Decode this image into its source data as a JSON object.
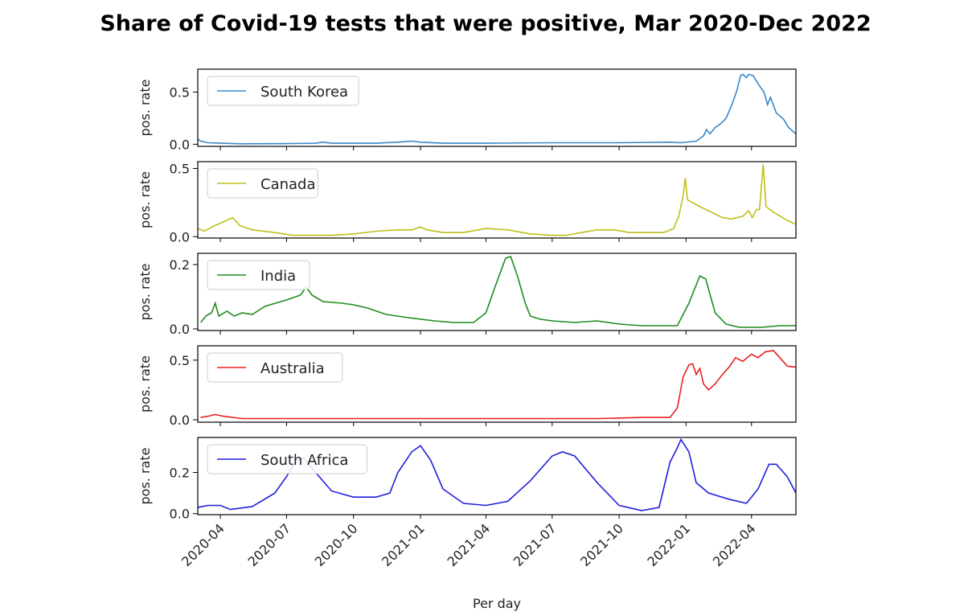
{
  "chart_data": {
    "type": "line",
    "title": "Share of Covid-19 tests that were positive, Mar 2020-Dec 2022",
    "xlabel": "Per day",
    "xlim": [
      "2020-03-01",
      "2022-06-01"
    ],
    "x_ticks": [
      "2020-04",
      "2020-07",
      "2020-10",
      "2021-01",
      "2021-04",
      "2021-07",
      "2021-10",
      "2022-01",
      "2022-04"
    ],
    "legend_position": "upper left",
    "panels": [
      {
        "name": "South Korea",
        "color": "#3a87c8",
        "ylabel": "pos. rate",
        "ylim": [
          -0.02,
          0.72
        ],
        "yticks": [
          0.0,
          0.5
        ],
        "series": [
          [
            "2020-03-01",
            0.05
          ],
          [
            "2020-03-05",
            0.03
          ],
          [
            "2020-03-15",
            0.015
          ],
          [
            "2020-04-01",
            0.01
          ],
          [
            "2020-05-01",
            0.005
          ],
          [
            "2020-07-01",
            0.006
          ],
          [
            "2020-08-10",
            0.01
          ],
          [
            "2020-08-20",
            0.02
          ],
          [
            "2020-09-01",
            0.01
          ],
          [
            "2020-11-01",
            0.01
          ],
          [
            "2020-12-01",
            0.02
          ],
          [
            "2020-12-20",
            0.03
          ],
          [
            "2021-01-01",
            0.02
          ],
          [
            "2021-02-01",
            0.01
          ],
          [
            "2021-04-01",
            0.01
          ],
          [
            "2021-07-01",
            0.015
          ],
          [
            "2021-10-01",
            0.015
          ],
          [
            "2021-12-10",
            0.02
          ],
          [
            "2021-12-25",
            0.015
          ],
          [
            "2022-01-15",
            0.03
          ],
          [
            "2022-01-25",
            0.08
          ],
          [
            "2022-01-29",
            0.14
          ],
          [
            "2022-02-03",
            0.1
          ],
          [
            "2022-02-10",
            0.16
          ],
          [
            "2022-02-18",
            0.2
          ],
          [
            "2022-02-25",
            0.25
          ],
          [
            "2022-03-05",
            0.38
          ],
          [
            "2022-03-12",
            0.52
          ],
          [
            "2022-03-17",
            0.66
          ],
          [
            "2022-03-20",
            0.67
          ],
          [
            "2022-03-25",
            0.64
          ],
          [
            "2022-03-28",
            0.67
          ],
          [
            "2022-04-03",
            0.66
          ],
          [
            "2022-04-10",
            0.58
          ],
          [
            "2022-04-18",
            0.5
          ],
          [
            "2022-04-23",
            0.38
          ],
          [
            "2022-04-27",
            0.45
          ],
          [
            "2022-05-05",
            0.3
          ],
          [
            "2022-05-15",
            0.24
          ],
          [
            "2022-05-22",
            0.16
          ],
          [
            "2022-06-01",
            0.1
          ]
        ]
      },
      {
        "name": "Canada",
        "color": "#bfbf1a",
        "ylabel": "pos. rate",
        "ylim": [
          -0.01,
          0.55
        ],
        "yticks": [
          0.0,
          0.5
        ],
        "series": [
          [
            "2020-03-01",
            0.06
          ],
          [
            "2020-03-10",
            0.04
          ],
          [
            "2020-03-20",
            0.07
          ],
          [
            "2020-04-10",
            0.12
          ],
          [
            "2020-04-18",
            0.14
          ],
          [
            "2020-04-28",
            0.08
          ],
          [
            "2020-05-15",
            0.05
          ],
          [
            "2020-06-15",
            0.03
          ],
          [
            "2020-07-10",
            0.01
          ],
          [
            "2020-09-01",
            0.01
          ],
          [
            "2020-10-01",
            0.02
          ],
          [
            "2020-11-01",
            0.04
          ],
          [
            "2020-12-01",
            0.05
          ],
          [
            "2020-12-20",
            0.05
          ],
          [
            "2021-01-01",
            0.07
          ],
          [
            "2021-01-10",
            0.05
          ],
          [
            "2021-02-01",
            0.03
          ],
          [
            "2021-03-01",
            0.03
          ],
          [
            "2021-04-01",
            0.06
          ],
          [
            "2021-05-01",
            0.05
          ],
          [
            "2021-06-01",
            0.02
          ],
          [
            "2021-07-01",
            0.01
          ],
          [
            "2021-07-20",
            0.01
          ],
          [
            "2021-08-10",
            0.03
          ],
          [
            "2021-09-01",
            0.05
          ],
          [
            "2021-09-25",
            0.05
          ],
          [
            "2021-10-15",
            0.03
          ],
          [
            "2021-12-01",
            0.03
          ],
          [
            "2021-12-15",
            0.06
          ],
          [
            "2021-12-22",
            0.15
          ],
          [
            "2021-12-28",
            0.3
          ],
          [
            "2021-12-31",
            0.43
          ],
          [
            "2022-01-03",
            0.27
          ],
          [
            "2022-01-10",
            0.25
          ],
          [
            "2022-01-20",
            0.22
          ],
          [
            "2022-02-05",
            0.18
          ],
          [
            "2022-02-20",
            0.14
          ],
          [
            "2022-03-05",
            0.13
          ],
          [
            "2022-03-20",
            0.15
          ],
          [
            "2022-03-28",
            0.19
          ],
          [
            "2022-04-02",
            0.14
          ],
          [
            "2022-04-08",
            0.2
          ],
          [
            "2022-04-12",
            0.2
          ],
          [
            "2022-04-17",
            0.53
          ],
          [
            "2022-04-21",
            0.22
          ],
          [
            "2022-05-01",
            0.18
          ],
          [
            "2022-05-20",
            0.12
          ],
          [
            "2022-06-01",
            0.09
          ]
        ]
      },
      {
        "name": "India",
        "color": "#1e8c1e",
        "ylabel": "pos. rate",
        "ylim": [
          -0.005,
          0.235
        ],
        "yticks": [
          0.0,
          0.2
        ],
        "series": [
          [
            "2020-03-05",
            0.02
          ],
          [
            "2020-03-12",
            0.04
          ],
          [
            "2020-03-20",
            0.05
          ],
          [
            "2020-03-25",
            0.08
          ],
          [
            "2020-03-30",
            0.04
          ],
          [
            "2020-04-10",
            0.055
          ],
          [
            "2020-04-20",
            0.04
          ],
          [
            "2020-05-01",
            0.05
          ],
          [
            "2020-05-15",
            0.045
          ],
          [
            "2020-06-01",
            0.07
          ],
          [
            "2020-07-01",
            0.09
          ],
          [
            "2020-07-20",
            0.105
          ],
          [
            "2020-07-28",
            0.13
          ],
          [
            "2020-08-05",
            0.105
          ],
          [
            "2020-08-20",
            0.085
          ],
          [
            "2020-09-15",
            0.08
          ],
          [
            "2020-10-01",
            0.075
          ],
          [
            "2020-10-20",
            0.065
          ],
          [
            "2020-11-15",
            0.045
          ],
          [
            "2020-12-15",
            0.035
          ],
          [
            "2021-01-20",
            0.025
          ],
          [
            "2021-02-15",
            0.02
          ],
          [
            "2021-03-15",
            0.02
          ],
          [
            "2021-04-01",
            0.05
          ],
          [
            "2021-04-15",
            0.14
          ],
          [
            "2021-04-28",
            0.22
          ],
          [
            "2021-05-05",
            0.225
          ],
          [
            "2021-05-15",
            0.16
          ],
          [
            "2021-05-25",
            0.08
          ],
          [
            "2021-06-01",
            0.04
          ],
          [
            "2021-06-15",
            0.03
          ],
          [
            "2021-07-01",
            0.025
          ],
          [
            "2021-08-01",
            0.02
          ],
          [
            "2021-09-01",
            0.025
          ],
          [
            "2021-10-01",
            0.015
          ],
          [
            "2021-11-01",
            0.01
          ],
          [
            "2021-12-20",
            0.01
          ],
          [
            "2022-01-05",
            0.08
          ],
          [
            "2022-01-20",
            0.165
          ],
          [
            "2022-01-28",
            0.155
          ],
          [
            "2022-02-10",
            0.05
          ],
          [
            "2022-02-25",
            0.015
          ],
          [
            "2022-03-15",
            0.005
          ],
          [
            "2022-04-15",
            0.005
          ],
          [
            "2022-05-10",
            0.01
          ],
          [
            "2022-06-01",
            0.01
          ]
        ]
      },
      {
        "name": "Australia",
        "color": "#e8201e",
        "ylabel": "pos. rate",
        "ylim": [
          -0.02,
          0.62
        ],
        "yticks": [
          0.0,
          0.5
        ],
        "series": [
          [
            "2020-03-05",
            0.02
          ],
          [
            "2020-03-15",
            0.03
          ],
          [
            "2020-03-25",
            0.045
          ],
          [
            "2020-04-05",
            0.03
          ],
          [
            "2020-05-01",
            0.01
          ],
          [
            "2020-07-15",
            0.01
          ],
          [
            "2020-09-01",
            0.01
          ],
          [
            "2021-09-01",
            0.01
          ],
          [
            "2021-11-01",
            0.02
          ],
          [
            "2021-12-10",
            0.02
          ],
          [
            "2021-12-20",
            0.1
          ],
          [
            "2021-12-28",
            0.36
          ],
          [
            "2022-01-05",
            0.46
          ],
          [
            "2022-01-10",
            0.47
          ],
          [
            "2022-01-15",
            0.38
          ],
          [
            "2022-01-20",
            0.43
          ],
          [
            "2022-01-25",
            0.3
          ],
          [
            "2022-02-01",
            0.25
          ],
          [
            "2022-02-10",
            0.3
          ],
          [
            "2022-02-20",
            0.38
          ],
          [
            "2022-03-01",
            0.44
          ],
          [
            "2022-03-10",
            0.52
          ],
          [
            "2022-03-20",
            0.49
          ],
          [
            "2022-04-01",
            0.55
          ],
          [
            "2022-04-10",
            0.52
          ],
          [
            "2022-04-20",
            0.57
          ],
          [
            "2022-05-01",
            0.58
          ],
          [
            "2022-05-10",
            0.52
          ],
          [
            "2022-05-20",
            0.45
          ],
          [
            "2022-06-01",
            0.44
          ]
        ]
      },
      {
        "name": "South Africa",
        "color": "#1f1fdb",
        "ylabel": "pos. rate",
        "ylim": [
          -0.005,
          0.37
        ],
        "yticks": [
          0.0,
          0.2
        ],
        "series": [
          [
            "2020-03-01",
            0.03
          ],
          [
            "2020-03-15",
            0.04
          ],
          [
            "2020-04-01",
            0.04
          ],
          [
            "2020-04-15",
            0.02
          ],
          [
            "2020-05-15",
            0.035
          ],
          [
            "2020-06-15",
            0.1
          ],
          [
            "2020-07-01",
            0.18
          ],
          [
            "2020-07-15",
            0.26
          ],
          [
            "2020-07-25",
            0.27
          ],
          [
            "2020-08-10",
            0.2
          ],
          [
            "2020-09-01",
            0.11
          ],
          [
            "2020-10-01",
            0.08
          ],
          [
            "2020-11-01",
            0.08
          ],
          [
            "2020-11-20",
            0.1
          ],
          [
            "2020-12-01",
            0.2
          ],
          [
            "2020-12-20",
            0.3
          ],
          [
            "2021-01-01",
            0.33
          ],
          [
            "2021-01-15",
            0.26
          ],
          [
            "2021-02-01",
            0.12
          ],
          [
            "2021-03-01",
            0.05
          ],
          [
            "2021-04-01",
            0.04
          ],
          [
            "2021-05-01",
            0.06
          ],
          [
            "2021-06-01",
            0.16
          ],
          [
            "2021-07-01",
            0.28
          ],
          [
            "2021-07-15",
            0.3
          ],
          [
            "2021-08-01",
            0.28
          ],
          [
            "2021-09-01",
            0.15
          ],
          [
            "2021-10-01",
            0.04
          ],
          [
            "2021-11-01",
            0.015
          ],
          [
            "2021-11-25",
            0.03
          ],
          [
            "2021-12-10",
            0.25
          ],
          [
            "2021-12-20",
            0.32
          ],
          [
            "2021-12-25",
            0.36
          ],
          [
            "2022-01-05",
            0.3
          ],
          [
            "2022-01-15",
            0.15
          ],
          [
            "2022-02-01",
            0.1
          ],
          [
            "2022-03-01",
            0.07
          ],
          [
            "2022-03-25",
            0.05
          ],
          [
            "2022-04-10",
            0.12
          ],
          [
            "2022-04-25",
            0.24
          ],
          [
            "2022-05-05",
            0.24
          ],
          [
            "2022-05-20",
            0.18
          ],
          [
            "2022-06-01",
            0.1
          ]
        ]
      }
    ]
  }
}
